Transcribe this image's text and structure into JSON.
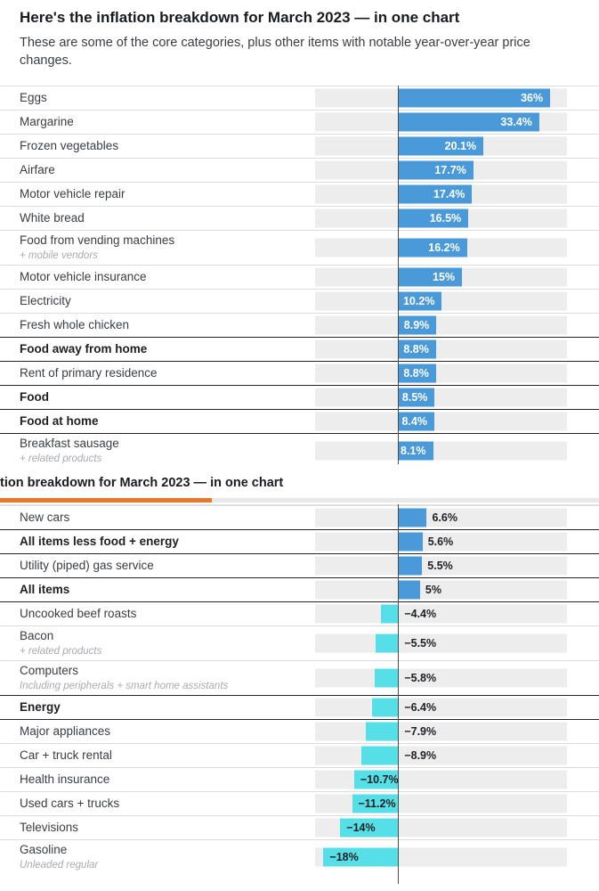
{
  "page": {
    "title": "Here's the inflation breakdown for March 2023 — in one chart",
    "subtitle": "These are some of the core categories, plus other items with notable year-over-year price changes."
  },
  "sticky_header": {
    "title_visible": "tion breakdown for March 2023 — in one chart",
    "progress_percent": 35.4
  },
  "colors": {
    "positive_bar": "#4a99d8",
    "negative_bar": "#57dfe7",
    "bar_track": "#ededee",
    "zero_axis": "#4a4b4f",
    "divider_light": "#dcdcde",
    "divider_dark": "#222326",
    "progress_orange": "#e8772e"
  },
  "chart_data": {
    "type": "bar",
    "orientation": "horizontal",
    "unit": "year-over-year % change",
    "title": "Here's the inflation breakdown for March 2023 — in one chart",
    "axis": {
      "min": -20,
      "max": 40,
      "zero_line": true,
      "grid": false
    },
    "legend": "none",
    "segments": [
      {
        "name": "top-visible-portion",
        "rows": [
          {
            "label": "Eggs",
            "value": 36,
            "display": "36%",
            "bold": false
          },
          {
            "label": "Margarine",
            "value": 33.4,
            "display": "33.4%",
            "bold": false
          },
          {
            "label": "Frozen vegetables",
            "value": 20.1,
            "display": "20.1%",
            "bold": false
          },
          {
            "label": "Airfare",
            "value": 17.7,
            "display": "17.7%",
            "bold": false
          },
          {
            "label": "Motor vehicle repair",
            "value": 17.4,
            "display": "17.4%",
            "bold": false
          },
          {
            "label": "White bread",
            "value": 16.5,
            "display": "16.5%",
            "bold": false
          },
          {
            "label": "Food from vending machines",
            "sub": "+ mobile vendors",
            "value": 16.2,
            "display": "16.2%",
            "bold": false
          },
          {
            "label": "Motor vehicle insurance",
            "value": 15,
            "display": "15%",
            "bold": false
          },
          {
            "label": "Electricity",
            "value": 10.2,
            "display": "10.2%",
            "bold": false
          },
          {
            "label": "Fresh whole chicken",
            "value": 8.9,
            "display": "8.9%",
            "bold": false
          },
          {
            "label": "Food away from home",
            "value": 8.8,
            "display": "8.8%",
            "bold": true
          },
          {
            "label": "Rent of primary residence",
            "value": 8.8,
            "display": "8.8%",
            "bold": false
          },
          {
            "label": "Food",
            "value": 8.5,
            "display": "8.5%",
            "bold": true
          },
          {
            "label": "Food at home",
            "value": 8.4,
            "display": "8.4%",
            "bold": true
          },
          {
            "label": "Breakfast sausage",
            "sub": "+ related products",
            "value": 8.1,
            "display": "8.1%",
            "bold": false
          }
        ]
      },
      {
        "name": "bottom-visible-portion",
        "rows": [
          {
            "label": "New cars",
            "value": 6.6,
            "display": "6.6%",
            "bold": false
          },
          {
            "label": "All items less food + energy",
            "value": 5.6,
            "display": "5.6%",
            "bold": true
          },
          {
            "label": "Utility (piped) gas service",
            "value": 5.5,
            "display": "5.5%",
            "bold": false
          },
          {
            "label": "All items",
            "value": 5,
            "display": "5%",
            "bold": true
          },
          {
            "label": "Uncooked beef roasts",
            "value": -4.4,
            "display": "−4.4%",
            "bold": false
          },
          {
            "label": "Bacon",
            "sub": "+ related products",
            "value": -5.5,
            "display": "−5.5%",
            "bold": false
          },
          {
            "label": "Computers",
            "sub": "Including peripherals + smart home assistants",
            "value": -5.8,
            "display": "−5.8%",
            "bold": false
          },
          {
            "label": "Energy",
            "value": -6.4,
            "display": "−6.4%",
            "bold": true
          },
          {
            "label": "Major appliances",
            "value": -7.9,
            "display": "−7.9%",
            "bold": false
          },
          {
            "label": "Car + truck rental",
            "value": -8.9,
            "display": "−8.9%",
            "bold": false
          },
          {
            "label": "Health insurance",
            "value": -10.7,
            "display": "−10.7%",
            "bold": false
          },
          {
            "label": "Used cars + trucks",
            "value": -11.2,
            "display": "−11.2%",
            "bold": false
          },
          {
            "label": "Televisions",
            "value": -14,
            "display": "−14%",
            "bold": false
          },
          {
            "label": "Gasoline",
            "sub": "Unleaded regular",
            "value": -18,
            "display": "−18%",
            "bold": false
          }
        ]
      }
    ]
  }
}
